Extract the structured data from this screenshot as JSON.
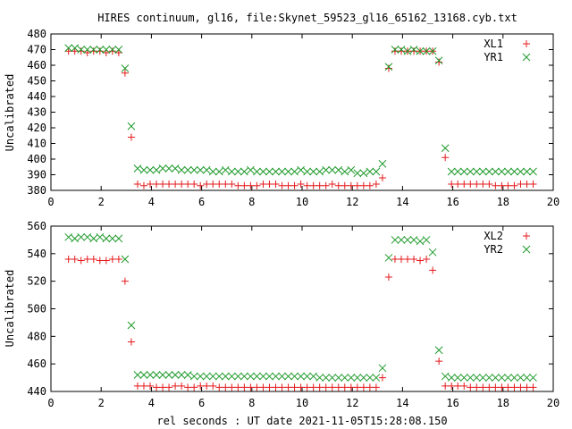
{
  "title": "HIRES continuum, gl16, file:Skynet_59523_gl16_65162_13168.cyb.txt",
  "xlabel": "rel seconds : UT date 2021-11-05T15:28:08.150",
  "colors": {
    "red": "#e41a1c",
    "green": "#1f9a2c"
  },
  "chart_data": [
    {
      "type": "scatter",
      "ylabel": "Uncalibrated",
      "xlim": [
        0,
        20
      ],
      "ylim": [
        380,
        480
      ],
      "xticks": [
        0,
        2,
        4,
        6,
        8,
        10,
        12,
        14,
        16,
        18,
        20
      ],
      "yticks": [
        380,
        390,
        400,
        410,
        420,
        430,
        440,
        450,
        460,
        470,
        480
      ],
      "grid": false,
      "legend_position": "top-right",
      "series": [
        {
          "name": "XL1",
          "marker": "plus",
          "color": "#e41a1c",
          "x": [
            0.7,
            0.95,
            1.2,
            1.45,
            1.7,
            1.95,
            2.2,
            2.45,
            2.7,
            2.95,
            3.2,
            3.45,
            3.7,
            3.95,
            4.2,
            4.45,
            4.7,
            4.95,
            5.2,
            5.45,
            5.7,
            5.95,
            6.2,
            6.45,
            6.7,
            6.95,
            7.2,
            7.45,
            7.7,
            7.95,
            8.2,
            8.45,
            8.7,
            8.95,
            9.2,
            9.45,
            9.7,
            9.95,
            10.2,
            10.45,
            10.7,
            10.95,
            11.2,
            11.45,
            11.7,
            11.95,
            12.2,
            12.45,
            12.7,
            12.95,
            13.2,
            13.45,
            13.7,
            13.95,
            14.2,
            14.45,
            14.7,
            14.95,
            15.2,
            15.45,
            15.7,
            15.95,
            16.2,
            16.45,
            16.7,
            16.95,
            17.2,
            17.45,
            17.7,
            17.95,
            18.2,
            18.45,
            18.7,
            18.95,
            19.2
          ],
          "y": [
            469,
            469,
            469,
            468,
            469,
            469,
            468,
            469,
            468,
            455,
            414,
            384,
            383,
            384,
            384,
            384,
            384,
            384,
            384,
            384,
            384,
            383,
            384,
            384,
            384,
            384,
            384,
            383,
            383,
            383,
            383,
            384,
            384,
            384,
            383,
            383,
            383,
            384,
            383,
            383,
            383,
            383,
            384,
            383,
            383,
            383,
            383,
            383,
            383,
            384,
            388,
            458,
            469,
            469,
            469,
            469,
            469,
            469,
            469,
            462,
            401,
            384,
            384,
            384,
            384,
            384,
            384,
            384,
            383,
            383,
            383,
            383,
            384,
            384,
            384
          ]
        },
        {
          "name": "YR1",
          "marker": "x",
          "color": "#1f9a2c",
          "x": [
            0.7,
            0.95,
            1.2,
            1.45,
            1.7,
            1.95,
            2.2,
            2.45,
            2.7,
            2.95,
            3.2,
            3.45,
            3.7,
            3.95,
            4.2,
            4.45,
            4.7,
            4.95,
            5.2,
            5.45,
            5.7,
            5.95,
            6.2,
            6.45,
            6.7,
            6.95,
            7.2,
            7.45,
            7.7,
            7.95,
            8.2,
            8.45,
            8.7,
            8.95,
            9.2,
            9.45,
            9.7,
            9.95,
            10.2,
            10.45,
            10.7,
            10.95,
            11.2,
            11.45,
            11.7,
            11.95,
            12.2,
            12.45,
            12.7,
            12.95,
            13.2,
            13.45,
            13.7,
            13.95,
            14.2,
            14.45,
            14.7,
            14.95,
            15.2,
            15.45,
            15.7,
            15.95,
            16.2,
            16.45,
            16.7,
            16.95,
            17.2,
            17.45,
            17.7,
            17.95,
            18.2,
            18.45,
            18.7,
            18.95,
            19.2
          ],
          "y": [
            471,
            471,
            470,
            470,
            470,
            470,
            470,
            470,
            470,
            458,
            421,
            394,
            393,
            393,
            393,
            394,
            394,
            394,
            393,
            393,
            393,
            393,
            393,
            392,
            392,
            393,
            392,
            392,
            392,
            393,
            392,
            392,
            392,
            392,
            392,
            392,
            392,
            393,
            392,
            392,
            392,
            393,
            393,
            393,
            392,
            393,
            391,
            391,
            392,
            392,
            397,
            459,
            470,
            470,
            469,
            470,
            469,
            469,
            469,
            463,
            407,
            392,
            392,
            392,
            392,
            392,
            392,
            392,
            392,
            392,
            392,
            392,
            392,
            392,
            392
          ]
        }
      ]
    },
    {
      "type": "scatter",
      "ylabel": "Uncalibrated",
      "xlim": [
        0,
        20
      ],
      "ylim": [
        440,
        560
      ],
      "xticks": [
        0,
        2,
        4,
        6,
        8,
        10,
        12,
        14,
        16,
        18,
        20
      ],
      "yticks": [
        440,
        460,
        480,
        500,
        520,
        540,
        560
      ],
      "grid": false,
      "legend_position": "top-right",
      "series": [
        {
          "name": "XL2",
          "marker": "plus",
          "color": "#e41a1c",
          "x": [
            0.7,
            0.95,
            1.2,
            1.45,
            1.7,
            1.95,
            2.2,
            2.45,
            2.7,
            2.95,
            3.2,
            3.45,
            3.7,
            3.95,
            4.2,
            4.45,
            4.7,
            4.95,
            5.2,
            5.45,
            5.7,
            5.95,
            6.2,
            6.45,
            6.7,
            6.95,
            7.2,
            7.45,
            7.7,
            7.95,
            8.2,
            8.45,
            8.7,
            8.95,
            9.2,
            9.45,
            9.7,
            9.95,
            10.2,
            10.45,
            10.7,
            10.95,
            11.2,
            11.45,
            11.7,
            11.95,
            12.2,
            12.45,
            12.7,
            12.95,
            13.2,
            13.45,
            13.7,
            13.95,
            14.2,
            14.45,
            14.7,
            14.95,
            15.2,
            15.45,
            15.7,
            15.95,
            16.2,
            16.45,
            16.7,
            16.95,
            17.2,
            17.45,
            17.7,
            17.95,
            18.2,
            18.45,
            18.7,
            18.95,
            19.2
          ],
          "y": [
            536,
            536,
            535,
            536,
            536,
            535,
            535,
            536,
            536,
            520,
            476,
            444,
            444,
            444,
            443,
            443,
            443,
            444,
            444,
            443,
            443,
            444,
            444,
            444,
            443,
            443,
            443,
            443,
            443,
            443,
            443,
            443,
            443,
            443,
            443,
            443,
            443,
            443,
            443,
            443,
            443,
            443,
            443,
            443,
            443,
            443,
            443,
            443,
            443,
            443,
            450,
            523,
            536,
            536,
            536,
            536,
            535,
            536,
            528,
            462,
            444,
            444,
            444,
            444,
            443,
            443,
            443,
            443,
            443,
            443,
            443,
            443,
            443,
            443,
            443
          ]
        },
        {
          "name": "YR2",
          "marker": "x",
          "color": "#1f9a2c",
          "x": [
            0.7,
            0.95,
            1.2,
            1.45,
            1.7,
            1.95,
            2.2,
            2.45,
            2.7,
            2.95,
            3.2,
            3.45,
            3.7,
            3.95,
            4.2,
            4.45,
            4.7,
            4.95,
            5.2,
            5.45,
            5.7,
            5.95,
            6.2,
            6.45,
            6.7,
            6.95,
            7.2,
            7.45,
            7.7,
            7.95,
            8.2,
            8.45,
            8.7,
            8.95,
            9.2,
            9.45,
            9.7,
            9.95,
            10.2,
            10.45,
            10.7,
            10.95,
            11.2,
            11.45,
            11.7,
            11.95,
            12.2,
            12.45,
            12.7,
            12.95,
            13.2,
            13.45,
            13.7,
            13.95,
            14.2,
            14.45,
            14.7,
            14.95,
            15.2,
            15.45,
            15.7,
            15.95,
            16.2,
            16.45,
            16.7,
            16.95,
            17.2,
            17.45,
            17.7,
            17.95,
            18.2,
            18.45,
            18.7,
            18.95,
            19.2
          ],
          "y": [
            552,
            551,
            552,
            552,
            551,
            552,
            551,
            551,
            551,
            536,
            488,
            452,
            452,
            452,
            452,
            452,
            452,
            452,
            452,
            452,
            451,
            451,
            451,
            451,
            451,
            451,
            451,
            451,
            451,
            451,
            451,
            451,
            451,
            451,
            451,
            451,
            451,
            451,
            451,
            451,
            450,
            450,
            450,
            450,
            450,
            450,
            450,
            450,
            450,
            450,
            457,
            537,
            550,
            550,
            550,
            550,
            549,
            550,
            541,
            470,
            451,
            450,
            450,
            450,
            450,
            450,
            450,
            450,
            450,
            450,
            450,
            450,
            450,
            450,
            450
          ]
        }
      ]
    }
  ]
}
